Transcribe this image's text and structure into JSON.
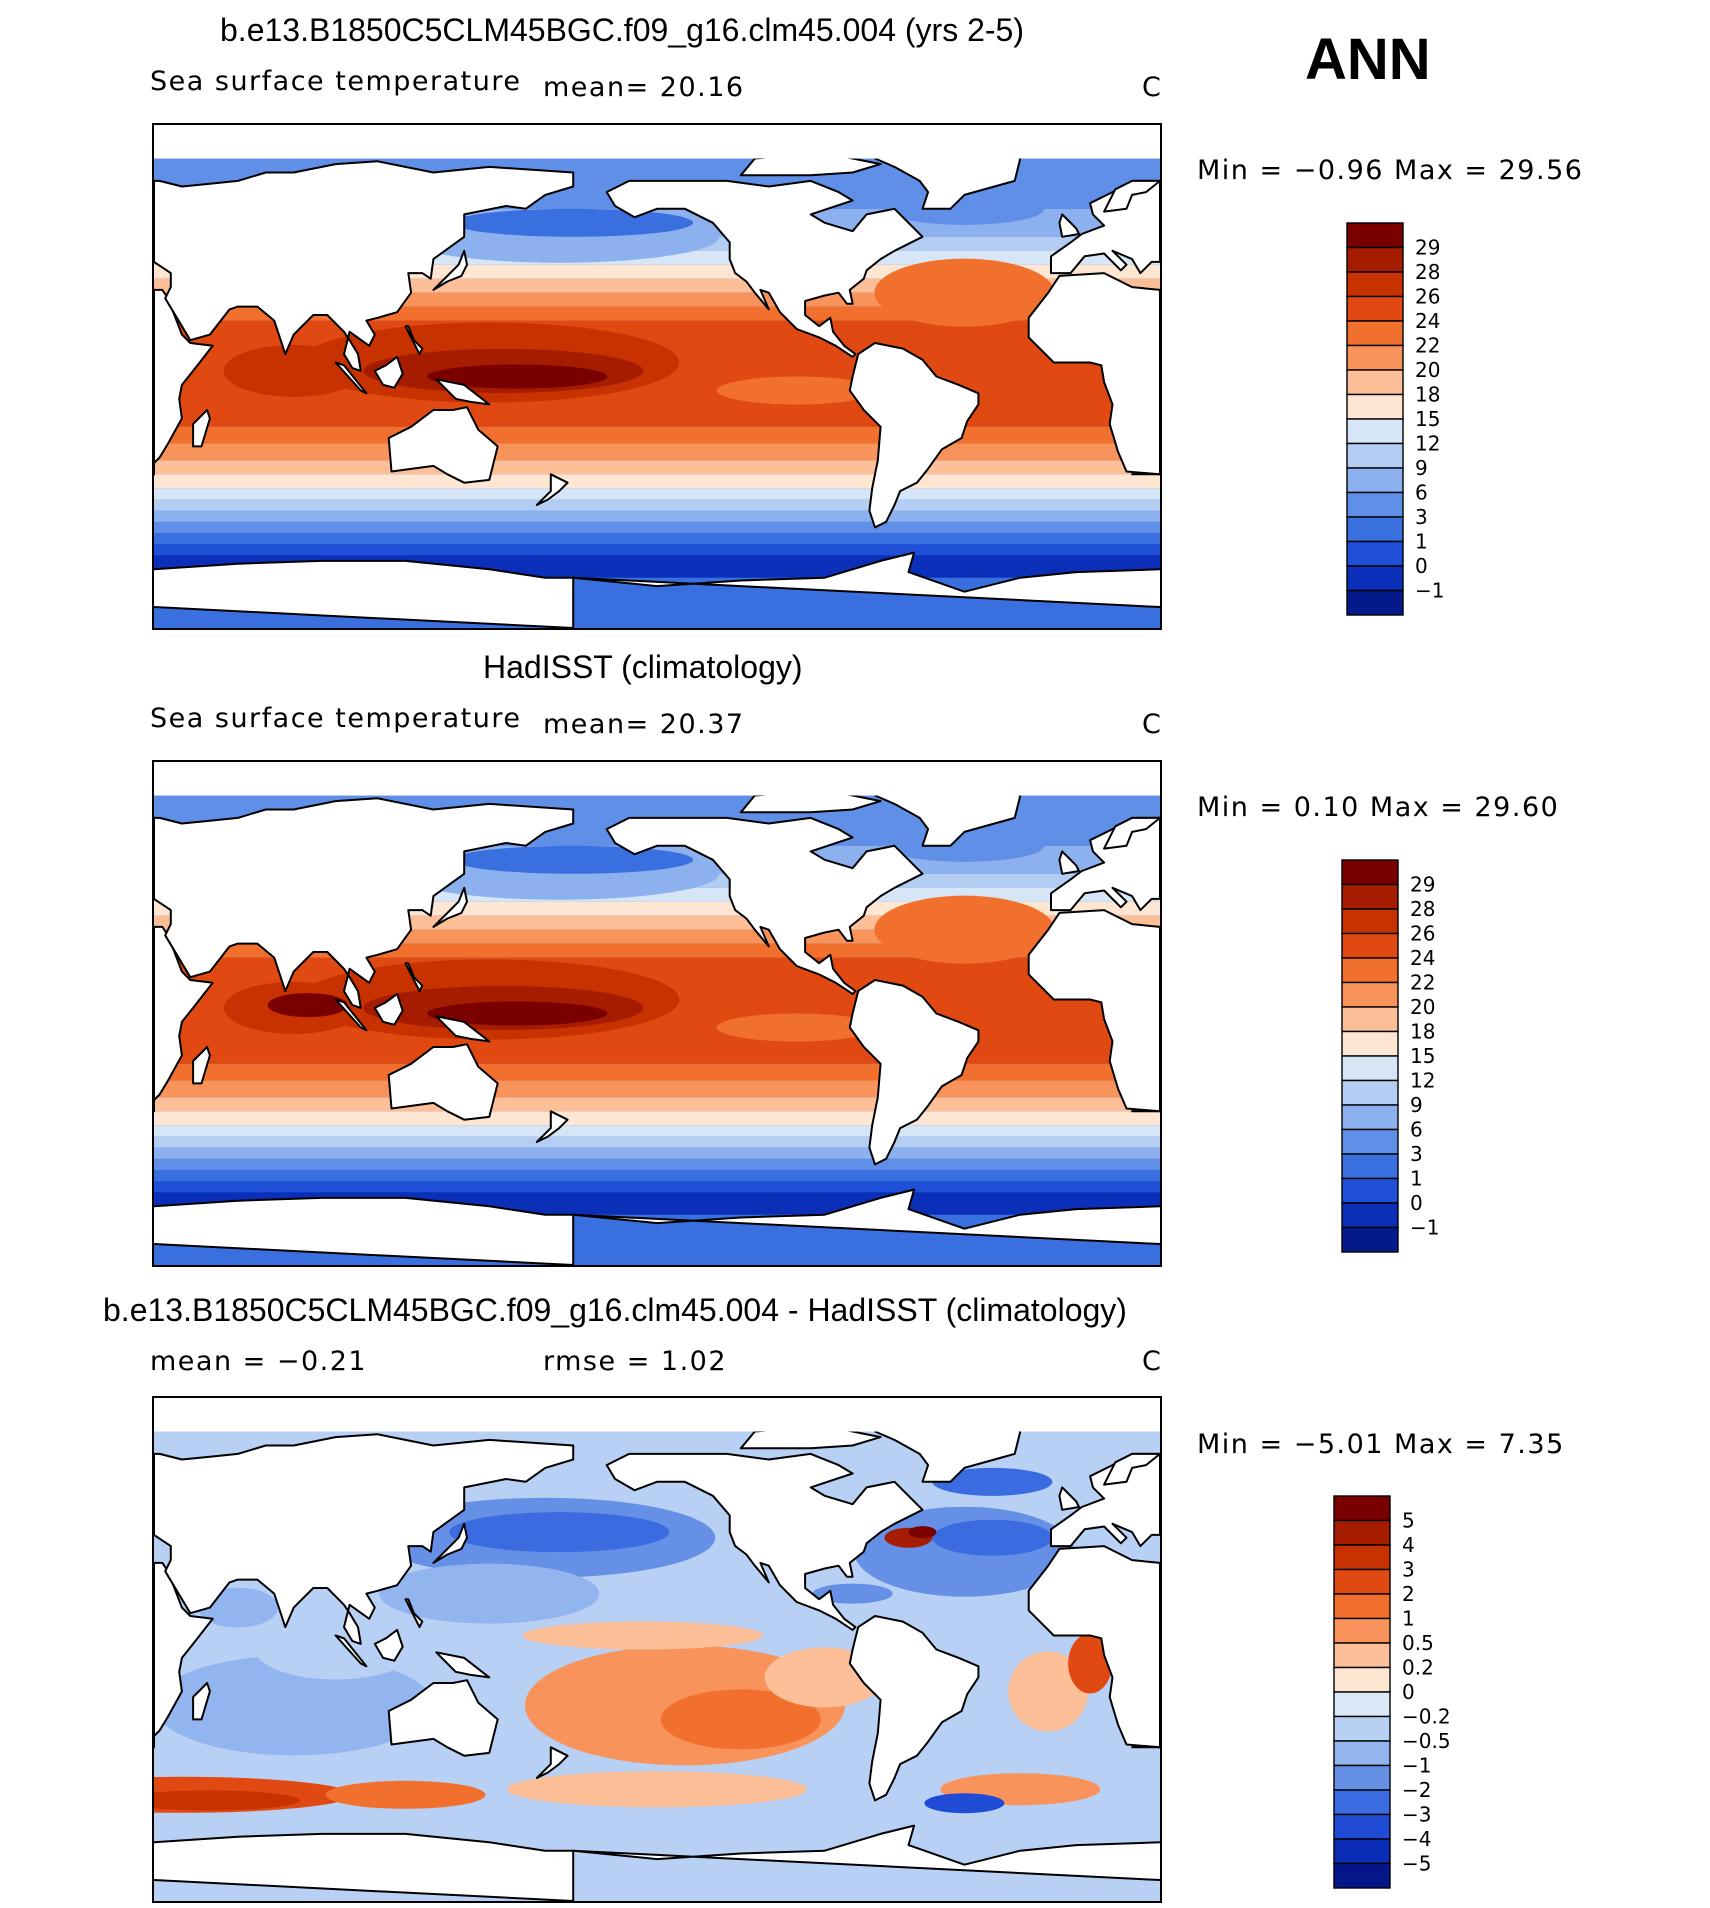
{
  "season": "ANN",
  "panels": [
    {
      "title": "b.e13.B1850C5CLM45BGC.f09_g16.clm45.004 (yrs 2-5)",
      "variable": "Sea surface temperature",
      "stat_left": "mean=  20.16",
      "stat_mid": "",
      "units": "C",
      "minmax": "Min =   −0.96 Max =   29.56",
      "type": "field",
      "colorbar_labels": [
        "29",
        "28",
        "26",
        "24",
        "22",
        "20",
        "18",
        "15",
        "12",
        "9",
        "6",
        "3",
        "1",
        "0",
        "−1"
      ]
    },
    {
      "title": "HadISST (climatology)",
      "variable": "Sea surface temperature",
      "stat_left": "mean=  20.37",
      "stat_mid": "",
      "units": "C",
      "minmax": "Min =    0.10 Max =   29.60",
      "type": "field",
      "colorbar_labels": [
        "29",
        "28",
        "26",
        "24",
        "22",
        "20",
        "18",
        "15",
        "12",
        "9",
        "6",
        "3",
        "1",
        "0",
        "−1"
      ]
    },
    {
      "title": "b.e13.B1850C5CLM45BGC.f09_g16.clm45.004 - HadISST (climatology)",
      "variable": "",
      "stat_left": "mean =   −0.21",
      "stat_mid": "rmse =    1.02",
      "units": "C",
      "minmax": "Min =   −5.01 Max =    7.35",
      "type": "diff",
      "colorbar_labels": [
        "5",
        "4",
        "3",
        "2",
        "1",
        "0.5",
        "0.2",
        "0",
        "−0.2",
        "−0.5",
        "−1",
        "−2",
        "−3",
        "−4",
        "−5"
      ]
    }
  ],
  "colors": {
    "field_palette": [
      "#7a0000",
      "#a51c00",
      "#c83200",
      "#e04a12",
      "#f2702e",
      "#f9935c",
      "#fdbf98",
      "#fee6d2",
      "#d6e6f7",
      "#b3cdf3",
      "#8db1ee",
      "#5f8fe6",
      "#3a6fe0",
      "#1f4fd6",
      "#0b2fb8",
      "#04198a"
    ],
    "diff_palette": [
      "#7a0000",
      "#a51c00",
      "#c83200",
      "#e04a12",
      "#f2702e",
      "#f9935c",
      "#fdbf98",
      "#fee6d2",
      "#dbe8f8",
      "#b8d0f4",
      "#92b4ef",
      "#6590e6",
      "#3a6be0",
      "#1f4bd5",
      "#0b2cb5",
      "#04168a"
    ],
    "land": "#ffffff",
    "coast": "#000000"
  }
}
